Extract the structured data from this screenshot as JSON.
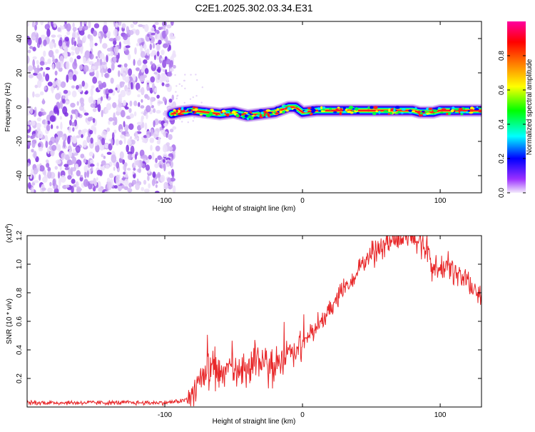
{
  "title": "C2E1.2025.302.03.34.E31",
  "chart_data": [
    {
      "type": "heatmap",
      "xlabel": "Height of straight line (km)",
      "ylabel": "Frequency (Hz)",
      "xlim": [
        -200,
        130
      ],
      "ylim": [
        -50,
        50
      ],
      "xticks": [
        -100,
        0,
        100
      ],
      "yticks": [
        -40,
        -20,
        0,
        20,
        40
      ],
      "noise_region_x": [
        -200,
        -93
      ],
      "signal_track": {
        "x": [
          -95,
          -90,
          -80,
          -70,
          -60,
          -50,
          -40,
          -30,
          -20,
          -10,
          -5,
          0,
          10,
          20,
          40,
          60,
          80,
          85,
          90,
          95,
          100,
          110,
          120,
          130
        ],
        "freq_hz": [
          -4,
          -3,
          -2,
          -3,
          -4,
          -3,
          -5,
          -4,
          -3,
          0,
          0,
          -3,
          -2,
          -2,
          -2,
          -2,
          -2,
          -3,
          -3,
          -3,
          -2,
          -2,
          -2,
          -2
        ]
      },
      "colorbar": {
        "label": "Normalized spectral amplitude",
        "range": [
          0,
          1
        ],
        "ticks": [
          "0.0",
          "0.2",
          "0.4",
          "0.6",
          "0.8"
        ],
        "colors": [
          "#e9d8f7",
          "#9b30ff",
          "#0000ff",
          "#00ffff",
          "#00ff00",
          "#ffff00",
          "#ff8000",
          "#ff0000",
          "#ff00a0"
        ]
      }
    },
    {
      "type": "line",
      "xlabel": "Height of straight line (km)",
      "ylabel": "SNR (10 * v/v)",
      "y_multiplier_label": "(x10",
      "y_multiplier_exp": "4",
      "y_multiplier_close": ")",
      "xlim": [
        -200,
        130
      ],
      "ylim": [
        0,
        1.2
      ],
      "xticks": [
        -100,
        0,
        100
      ],
      "yticks": [
        "0.2",
        "0.4",
        "0.6",
        "0.8",
        "1.0",
        "1.2"
      ],
      "series": [
        {
          "name": "SNR",
          "color": "#e8282a",
          "x": [
            -200,
            -180,
            -160,
            -140,
            -120,
            -100,
            -90,
            -85,
            -80,
            -75,
            -70,
            -65,
            -60,
            -55,
            -50,
            -45,
            -40,
            -35,
            -30,
            -25,
            -20,
            -15,
            -10,
            -5,
            0,
            5,
            10,
            15,
            20,
            25,
            30,
            40,
            50,
            55,
            60,
            65,
            70,
            75,
            80,
            85,
            90,
            95,
            100,
            105,
            110,
            115,
            120,
            125,
            130
          ],
          "y": [
            0.03,
            0.03,
            0.03,
            0.03,
            0.03,
            0.03,
            0.04,
            0.05,
            0.1,
            0.2,
            0.25,
            0.28,
            0.22,
            0.25,
            0.27,
            0.24,
            0.26,
            0.3,
            0.3,
            0.28,
            0.3,
            0.33,
            0.36,
            0.38,
            0.43,
            0.5,
            0.55,
            0.6,
            0.68,
            0.75,
            0.82,
            0.95,
            1.08,
            1.12,
            1.15,
            1.17,
            1.18,
            1.18,
            1.17,
            1.16,
            1.1,
            0.98,
            0.95,
            1.0,
            0.95,
            0.92,
            0.88,
            0.8,
            0.76
          ]
        }
      ]
    }
  ]
}
